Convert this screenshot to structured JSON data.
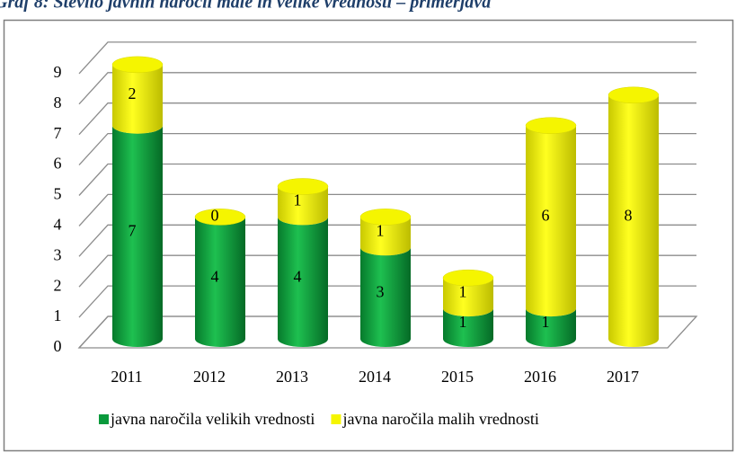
{
  "chart_data": {
    "type": "bar3d_stacked",
    "title": "Graf 8: Število javnih naročil male in velike vrednosti – primerjava",
    "categories": [
      "2011",
      "2012",
      "2013",
      "2014",
      "2015",
      "2016",
      "2017"
    ],
    "series": [
      {
        "name": "javna naročila velikih vrednosti",
        "color": "#0a9a3c",
        "values": [
          7,
          4,
          4,
          3,
          1,
          1,
          0
        ],
        "value_labels": [
          "7",
          "4",
          "4",
          "3",
          "1",
          "1",
          null
        ]
      },
      {
        "name": "javna naročila malih vrednosti",
        "color": "#f5f500",
        "values": [
          2,
          0,
          1,
          1,
          1,
          6,
          8
        ]
      }
    ],
    "ylim": [
      0,
      9
    ],
    "yticks": [
      0,
      1,
      2,
      3,
      4,
      5,
      6,
      7,
      8,
      9
    ],
    "grid": true,
    "legend": "bottom"
  }
}
